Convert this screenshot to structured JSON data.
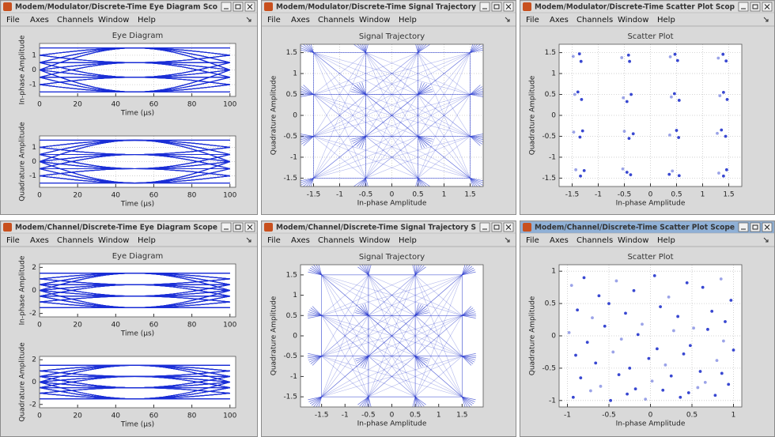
{
  "windows": [
    {
      "title": "Modem/Modulator/Discrete-Time Eye Diagram Sco",
      "menu": [
        "File",
        "Axes",
        "Channels",
        "Window",
        "Help"
      ],
      "axes": [
        {
          "kind": "eye",
          "title": "Eye Diagram",
          "xlabel": "Time (µs)",
          "ylabel": "In-phase Amplitude",
          "xlim": [
            0,
            103
          ],
          "ylim": [
            -1.8,
            1.8
          ],
          "xticks": [
            0,
            20,
            40,
            60,
            80,
            100
          ],
          "yticks": [
            -1,
            0,
            1
          ],
          "grid": true,
          "color": "#1a2ed6",
          "levels": [
            -1.5,
            -0.5,
            0.5,
            1.5
          ]
        },
        {
          "kind": "eye",
          "xlabel": "Time (µs)",
          "ylabel": "Quadrature Amplitude",
          "xlim": [
            0,
            103
          ],
          "ylim": [
            -1.8,
            1.8
          ],
          "xticks": [
            0,
            20,
            40,
            60,
            80,
            100
          ],
          "yticks": [
            -1,
            0,
            1
          ],
          "grid": true,
          "color": "#1a2ed6",
          "levels": [
            -1.5,
            -0.5,
            0.5,
            1.5
          ]
        }
      ]
    },
    {
      "title": "Modem/Modulator/Discrete-Time Signal Trajectory",
      "menu": [
        "File",
        "Axes",
        "Channels",
        "Window",
        "Help"
      ],
      "axes": [
        {
          "kind": "trajectory",
          "title": "Signal Trajectory",
          "xlabel": "In-phase Amplitude",
          "ylabel": "Quadrature Amplitude",
          "xlim": [
            -1.75,
            1.75
          ],
          "ylim": [
            -1.7,
            1.7
          ],
          "xticks": [
            -1.5,
            -1,
            -0.5,
            0,
            0.5,
            1,
            1.5
          ],
          "yticks": [
            -1.5,
            -1,
            -0.5,
            0,
            0.5,
            1,
            1.5
          ],
          "grid": true,
          "color": "#2a3cd0",
          "x": [
            -1.5,
            -1.5,
            -1.5,
            -1.5,
            -0.5,
            -0.5,
            -0.5,
            -0.5,
            0.5,
            0.5,
            0.5,
            0.5,
            1.5,
            1.5,
            1.5,
            1.5
          ],
          "y": [
            1.5,
            0.5,
            -0.5,
            -1.5,
            1.5,
            0.5,
            -0.5,
            -1.5,
            1.5,
            0.5,
            -0.5,
            -1.5,
            1.5,
            0.5,
            -0.5,
            -1.5
          ]
        }
      ]
    },
    {
      "title": "Modem/Modulator/Discrete-Time Scatter Plot Scop",
      "menu": [
        "File",
        "Axes",
        "Channels",
        "Window",
        "Help"
      ],
      "axes": [
        {
          "kind": "scatter",
          "title": "Scatter Plot",
          "xlabel": "In-phase Amplitude",
          "ylabel": "Quadrature Amplitude",
          "xlim": [
            -1.75,
            1.75
          ],
          "ylim": [
            -1.7,
            1.7
          ],
          "xticks": [
            -1.5,
            -1,
            -0.5,
            0,
            0.5,
            1,
            1.5
          ],
          "yticks": [
            -1.5,
            -1,
            -0.5,
            0,
            0.5,
            1,
            1.5
          ],
          "grid": true,
          "color": "#2233cc",
          "x": [
            -1.48,
            -1.33,
            -1.36,
            -1.45,
            -1.32,
            -1.39,
            -1.47,
            -1.35,
            -1.3,
            -1.43,
            -1.34,
            -1.27,
            -0.55,
            -0.4,
            -0.42,
            -0.52,
            -0.37,
            -0.45,
            -0.5,
            -0.41,
            -0.33,
            -0.53,
            -0.38,
            -0.45,
            0.38,
            0.52,
            0.47,
            0.4,
            0.55,
            0.46,
            0.37,
            0.5,
            0.54,
            0.42,
            0.55,
            0.36,
            1.3,
            1.45,
            1.39,
            1.33,
            1.47,
            1.4,
            1.28,
            1.44,
            1.36,
            1.31,
            1.46,
            1.4
          ],
          "y": [
            1.41,
            1.29,
            1.47,
            0.5,
            0.38,
            0.56,
            -0.4,
            -0.52,
            -0.37,
            -1.3,
            -1.45,
            -1.32,
            1.38,
            1.29,
            1.44,
            0.42,
            0.5,
            0.33,
            -0.38,
            -0.55,
            -0.44,
            -1.28,
            -1.42,
            -1.36,
            1.4,
            1.31,
            1.46,
            0.44,
            0.36,
            0.52,
            -0.47,
            -0.36,
            -0.53,
            -1.33,
            -1.44,
            -1.41,
            1.37,
            1.3,
            1.46,
            0.47,
            0.38,
            0.55,
            -0.43,
            -0.5,
            -0.35,
            -1.38,
            -1.3,
            -1.45
          ]
        }
      ]
    },
    {
      "title": "Modem/Channel/Discrete-Time Eye Diagram Scope",
      "menu": [
        "File",
        "Axes",
        "Channels",
        "Window",
        "Help"
      ],
      "axes": [
        {
          "kind": "eye",
          "title": "Eye Diagram",
          "xlabel": "Time (µs)",
          "ylabel": "In-phase Amplitude",
          "xlim": [
            0,
            103
          ],
          "ylim": [
            -2.3,
            2.3
          ],
          "xticks": [
            0,
            20,
            40,
            60,
            80,
            100
          ],
          "yticks": [
            -2,
            0,
            2
          ],
          "grid": false,
          "color": "#1a2ed6",
          "levels": [
            -1.5,
            -0.5,
            0.5,
            1.5
          ]
        },
        {
          "kind": "eye",
          "xlabel": "Time (µs)",
          "ylabel": "Quadrature Amplitude",
          "xlim": [
            0,
            103
          ],
          "ylim": [
            -2.3,
            2.3
          ],
          "xticks": [
            0,
            20,
            40,
            60,
            80,
            100
          ],
          "yticks": [
            -2,
            0,
            2
          ],
          "grid": false,
          "color": "#1a2ed6",
          "levels": [
            -1.5,
            -0.5,
            0.5,
            1.5
          ]
        }
      ]
    },
    {
      "title": "Modem/Channel/Discrete-Time Signal Trajectory S",
      "menu": [
        "File",
        "Axes",
        "Channels",
        "Window",
        "Help"
      ],
      "axes": [
        {
          "kind": "trajectory",
          "title": "Signal Trajectory",
          "xlabel": "In-phase Amplitude",
          "ylabel": "Quadrature Amplitude",
          "xlim": [
            -1.95,
            1.95
          ],
          "ylim": [
            -1.75,
            1.75
          ],
          "xticks": [
            -1.5,
            -1,
            -0.5,
            0,
            0.5,
            1,
            1.5
          ],
          "yticks": [
            -1.5,
            -1,
            -0.5,
            0,
            0.5,
            1,
            1.5
          ],
          "grid": false,
          "color": "#2233cc",
          "x": [
            -1.5,
            -1.5,
            -1.5,
            -1.5,
            -0.5,
            -0.5,
            -0.5,
            -0.5,
            0.5,
            0.5,
            0.5,
            0.5,
            1.5,
            1.5,
            1.5,
            1.5
          ],
          "y": [
            1.5,
            0.5,
            -0.5,
            -1.5,
            1.5,
            0.5,
            -0.5,
            -1.5,
            1.5,
            0.5,
            -0.5,
            -1.5,
            1.5,
            0.5,
            -0.5,
            -1.5
          ]
        }
      ]
    },
    {
      "title": "Modem/Channel/Discrete-Time Scatter Plot Scope",
      "active": true,
      "menu": [
        "File",
        "Axes",
        "Channels",
        "Window",
        "Help"
      ],
      "axes": [
        {
          "kind": "scatter",
          "title": "Scatter Plot",
          "xlabel": "In-phase Amplitude",
          "ylabel": "Quadrature Amplitude",
          "xlim": [
            -1.1,
            1.1
          ],
          "ylim": [
            -1.1,
            1.1
          ],
          "xticks": [
            -1,
            -0.5,
            0,
            0.5,
            1
          ],
          "yticks": [
            -1,
            -0.5,
            0,
            0.5,
            1
          ],
          "grid": true,
          "color": "#2233cc",
          "x": [
            -0.95,
            -0.8,
            -0.62,
            -0.41,
            -0.2,
            0.05,
            0.22,
            0.44,
            0.63,
            0.85,
            0.97,
            -0.88,
            -0.7,
            -0.5,
            -0.3,
            -0.1,
            0.12,
            0.33,
            0.52,
            0.74,
            0.9,
            -0.98,
            -0.76,
            -0.55,
            -0.35,
            -0.15,
            0.08,
            0.28,
            0.48,
            0.69,
            0.88,
            -0.9,
            -0.66,
            -0.45,
            -0.25,
            -0.02,
            0.18,
            0.4,
            0.6,
            0.8,
            1.0,
            -0.84,
            -0.6,
            -0.38,
            -0.18,
            0.02,
            0.25,
            0.46,
            0.66,
            0.86,
            -0.93,
            -0.72,
            -0.48,
            -0.28,
            -0.06,
            0.15,
            0.36,
            0.57,
            0.78,
            0.94
          ],
          "y": [
            0.78,
            0.9,
            0.62,
            0.85,
            0.7,
            0.93,
            0.6,
            0.82,
            0.75,
            0.88,
            0.55,
            0.4,
            0.28,
            0.5,
            0.35,
            0.18,
            0.45,
            0.3,
            0.12,
            0.38,
            0.22,
            0.05,
            -0.1,
            0.15,
            -0.05,
            0.02,
            -0.2,
            0.08,
            -0.15,
            0.1,
            -0.08,
            -0.3,
            -0.42,
            -0.25,
            -0.5,
            -0.35,
            -0.45,
            -0.28,
            -0.55,
            -0.38,
            -0.22,
            -0.65,
            -0.78,
            -0.6,
            -0.82,
            -0.7,
            -0.62,
            -0.88,
            -0.72,
            -0.58,
            -0.95,
            -0.85,
            -1.0,
            -0.9,
            -0.98,
            -0.84,
            -0.95,
            -0.8,
            -0.92,
            -0.75
          ]
        }
      ]
    }
  ]
}
